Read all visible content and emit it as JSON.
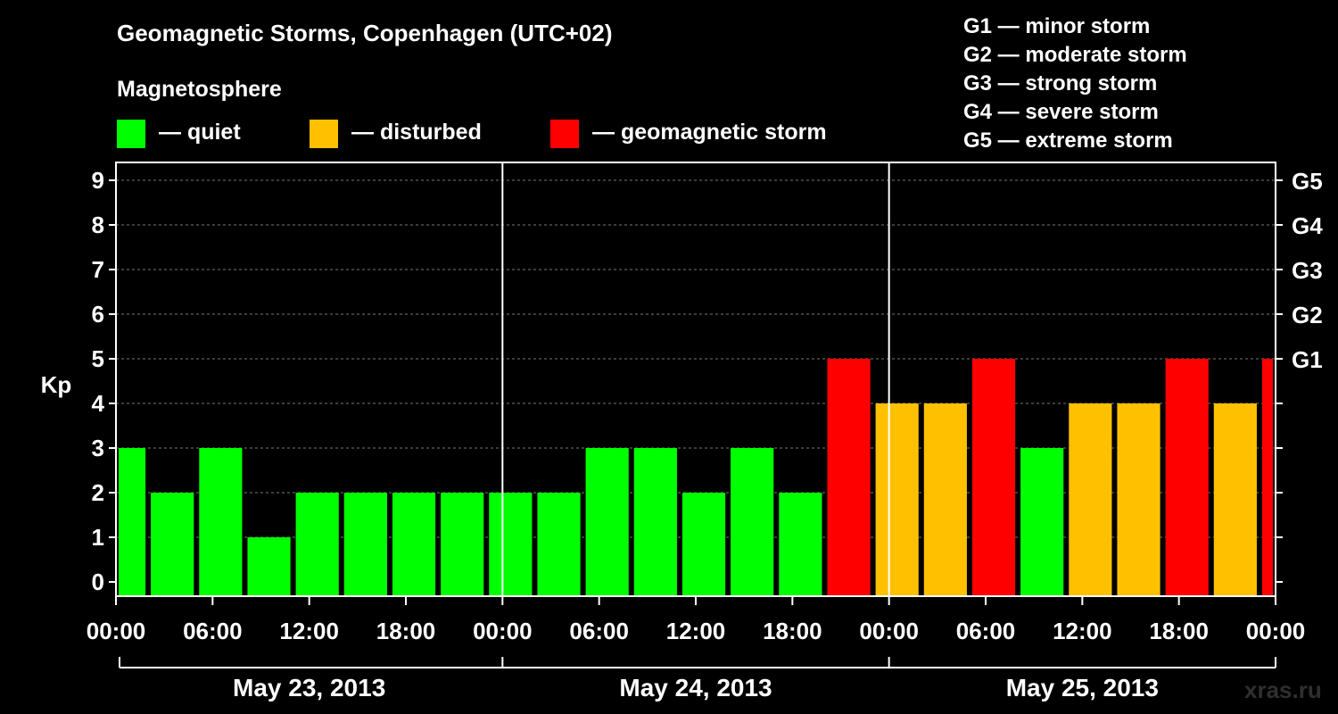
{
  "chart_data": {
    "type": "bar",
    "title": "Geomagnetic Storms, Copenhagen (UTC+02)",
    "subtitle": "Magnetosphere",
    "ylabel": "Kp",
    "ylim": [
      0,
      9
    ],
    "yticks": [
      "0",
      "1",
      "2",
      "3",
      "4",
      "5",
      "6",
      "7",
      "8",
      "9"
    ],
    "right_ticks": [
      {
        "kp": 5,
        "label": "G1"
      },
      {
        "kp": 6,
        "label": "G2"
      },
      {
        "kp": 7,
        "label": "G3"
      },
      {
        "kp": 8,
        "label": "G4"
      },
      {
        "kp": 9,
        "label": "G5"
      }
    ],
    "xticks": [
      "00:00",
      "06:00",
      "12:00",
      "18:00",
      "00:00",
      "06:00",
      "12:00",
      "18:00",
      "00:00",
      "06:00",
      "12:00",
      "18:00",
      "00:00"
    ],
    "days": [
      "May 23, 2013",
      "May 24, 2013",
      "May 25, 2013"
    ],
    "interval_hours": 3,
    "series": [
      {
        "values": [
          3,
          2,
          3,
          1,
          2,
          2,
          2,
          2,
          2,
          2,
          3,
          3,
          2,
          3,
          2,
          5,
          4,
          4,
          5,
          3,
          4,
          4,
          5,
          4,
          5
        ]
      }
    ],
    "status_colors": {
      "quiet": "#00ff00",
      "disturbed": "#ffc000",
      "storm": "#ff0000"
    },
    "legend": {
      "position": "top-left",
      "items": [
        {
          "key": "quiet",
          "label": "— quiet"
        },
        {
          "key": "disturbed",
          "label": "— disturbed"
        },
        {
          "key": "storm",
          "label": "— geomagnetic storm"
        }
      ]
    },
    "g_scale": [
      "G1 — minor storm",
      "G2 — moderate storm",
      "G3 — strong storm",
      "G4 — severe storm",
      "G5 — extreme storm"
    ],
    "grid": true
  },
  "credit": "xras.ru"
}
